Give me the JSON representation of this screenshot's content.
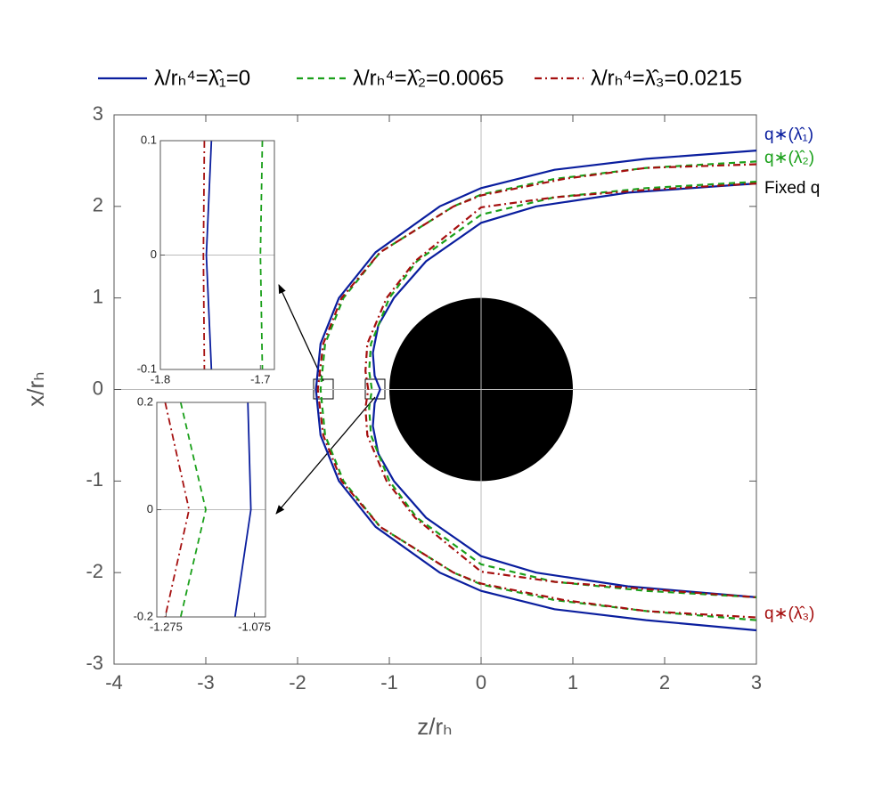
{
  "chart_data": {
    "type": "line",
    "x_label": "z/rₕ",
    "y_label": "x/rₕ",
    "xlim": [
      -4,
      3
    ],
    "ylim": [
      -3,
      3
    ],
    "xticks": [
      -4,
      -3,
      -2,
      -1,
      0,
      1,
      2,
      3
    ],
    "yticks": [
      -3,
      -2,
      -1,
      0,
      1,
      2,
      3
    ],
    "zero_lines": true,
    "horizon": {
      "z": 0,
      "x": 0,
      "r": 1,
      "color": "#000000"
    },
    "series": [
      {
        "name": "λ/rₕ⁴=λ̂₁=0",
        "color": "#0a1e9e",
        "style": "solid",
        "branches": [
          {
            "x": [
              3,
              1.8,
              0.8,
              0,
              -0.45,
              -1.15,
              -1.55,
              -1.75,
              -1.8,
              -1.75,
              -1.55,
              -1.15,
              -0.45,
              0,
              0.8,
              1.8,
              3
            ],
            "values": [
              2.61,
              2.52,
              2.4,
              2.2,
              2,
              1.5,
              1,
              0.5,
              0,
              -0.5,
              -1,
              -1.5,
              -2,
              -2.2,
              -2.4,
              -2.52,
              -2.63
            ]
          },
          {
            "x": [
              3,
              1.6,
              0.6,
              0,
              -0.6,
              -0.95,
              -1.12,
              -1.18,
              -1.16,
              -1.1,
              -1.16,
              -1.18,
              -1.12,
              -0.95,
              -0.6,
              0,
              0.6,
              1.6,
              3
            ],
            "values": [
              2.25,
              2.15,
              2.0,
              1.82,
              1.4,
              1,
              0.7,
              0.4,
              0.15,
              0,
              -0.15,
              -0.4,
              -0.7,
              -1,
              -1.4,
              -1.82,
              -2.0,
              -2.15,
              -2.27
            ]
          }
        ]
      },
      {
        "name": "λ/rₕ⁴=λ̂₂=0.0065",
        "color": "#1aa01a",
        "style": "dashed",
        "branches": [
          {
            "x": [
              3,
              1.8,
              0.8,
              0,
              -0.3,
              -1.1,
              -1.5,
              -1.7,
              -1.75,
              -1.7,
              -1.5,
              -1.1,
              -0.3,
              0,
              0.8,
              1.8,
              3
            ],
            "values": [
              2.49,
              2.42,
              2.3,
              2.13,
              2,
              1.5,
              1,
              0.5,
              0,
              -0.5,
              -1,
              -1.5,
              -2,
              -2.13,
              -2.3,
              -2.42,
              -2.52
            ]
          },
          {
            "x": [
              3,
              1.8,
              0.8,
              0,
              -0.7,
              -1.0,
              -1.2,
              -1.22,
              -1.19,
              -1.22,
              -1.2,
              -1.0,
              -0.7,
              0,
              0.8,
              1.8,
              3
            ],
            "values": [
              2.27,
              2.2,
              2.1,
              1.91,
              1.4,
              1,
              0.5,
              0.2,
              0,
              -0.2,
              -0.5,
              -1,
              -1.4,
              -1.91,
              -2.1,
              -2.2,
              -2.27
            ]
          }
        ]
      },
      {
        "name": "λ/rₕ⁴=λ̂₃=0.0215",
        "color": "#a50f0f",
        "style": "dashdot",
        "branches": [
          {
            "x": [
              3,
              1.8,
              0.9,
              0,
              -0.3,
              -1.1,
              -1.52,
              -1.72,
              -1.78,
              -1.72,
              -1.52,
              -1.1,
              -0.3,
              0,
              0.9,
              1.8,
              3
            ],
            "values": [
              2.46,
              2.42,
              2.3,
              2.12,
              2,
              1.5,
              1,
              0.5,
              0,
              -0.5,
              -1,
              -1.5,
              -2,
              -2.12,
              -2.3,
              -2.42,
              -2.49
            ]
          },
          {
            "x": [
              3,
              1.8,
              0.8,
              0,
              -0.72,
              -1.03,
              -1.24,
              -1.26,
              -1.23,
              -1.26,
              -1.24,
              -1.03,
              -0.72,
              0,
              0.8,
              1.8,
              3
            ],
            "values": [
              2.25,
              2.18,
              2.1,
              1.99,
              1.4,
              1,
              0.5,
              0.2,
              0,
              -0.2,
              -0.5,
              -1,
              -1.4,
              -1.99,
              -2.1,
              -2.18,
              -2.27
            ]
          }
        ]
      }
    ],
    "annotations": [
      {
        "text": "q∗(λ̂₁)",
        "color": "#0a1e9e"
      },
      {
        "text": "q∗(λ̂₂)",
        "color": "#1aa01a"
      },
      {
        "text": "Fixed q",
        "color": "#000000"
      },
      {
        "text": "q∗(λ̂₃)",
        "color": "#a50f0f"
      }
    ],
    "insets": [
      {
        "xlim": [
          -1.8,
          -1.686
        ],
        "ylim": [
          -0.1,
          0.1
        ],
        "xticks": [
          -1.8,
          -1.7
        ],
        "yticks": [
          -0.1,
          0,
          0.1
        ],
        "series": [
          {
            "x": [
              -1.749,
              -1.754,
              -1.749
            ],
            "values": [
              0.1,
              0,
              -0.1
            ]
          },
          {
            "x": [
              -1.698,
              -1.7,
              -1.698
            ],
            "values": [
              0.1,
              0,
              -0.1
            ]
          },
          {
            "x": [
              -1.756,
              -1.757,
              -1.756
            ],
            "values": [
              0.1,
              0,
              -0.1
            ]
          }
        ]
      },
      {
        "xlim": [
          -1.296,
          -1.05
        ],
        "ylim": [
          -0.2,
          0.2
        ],
        "xticks": [
          -1.275,
          -1.075
        ],
        "yticks": [
          -0.2,
          0,
          0.2
        ],
        "series": [
          {
            "x": [
              -1.09,
              -1.083,
              -1.119
            ],
            "values": [
              0.2,
              0,
              -0.2
            ]
          },
          {
            "x": [
              -1.242,
              -1.185,
              -1.242
            ],
            "values": [
              0.2,
              0,
              -0.2
            ]
          },
          {
            "x": [
              -1.277,
              -1.223,
              -1.277
            ],
            "values": [
              0.2,
              0,
              -0.2
            ]
          }
        ]
      }
    ]
  }
}
